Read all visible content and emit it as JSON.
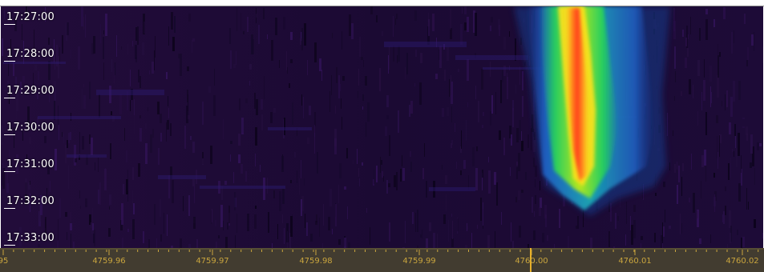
{
  "spectrogram": {
    "time_labels": [
      "17:27:00",
      "17:28:00",
      "17:29:00",
      "17:30:00",
      "17:31:00",
      "17:32:00",
      "17:33:00"
    ],
    "freq_labels": [
      "95",
      "4759.96",
      "4759.97",
      "4759.98",
      "4759.99",
      "4760.00",
      "4760.01",
      "4760.02"
    ],
    "colors": {
      "background": "#1a0a33",
      "axis_bg": "#423c30",
      "axis_text": "#c9a53e",
      "time_text": "#ffffff",
      "signal_core": "#ff3c1e",
      "signal_mid": "#ffe11e",
      "signal_outer": "#1ec85a",
      "signal_edge": "#1e64c8"
    }
  }
}
